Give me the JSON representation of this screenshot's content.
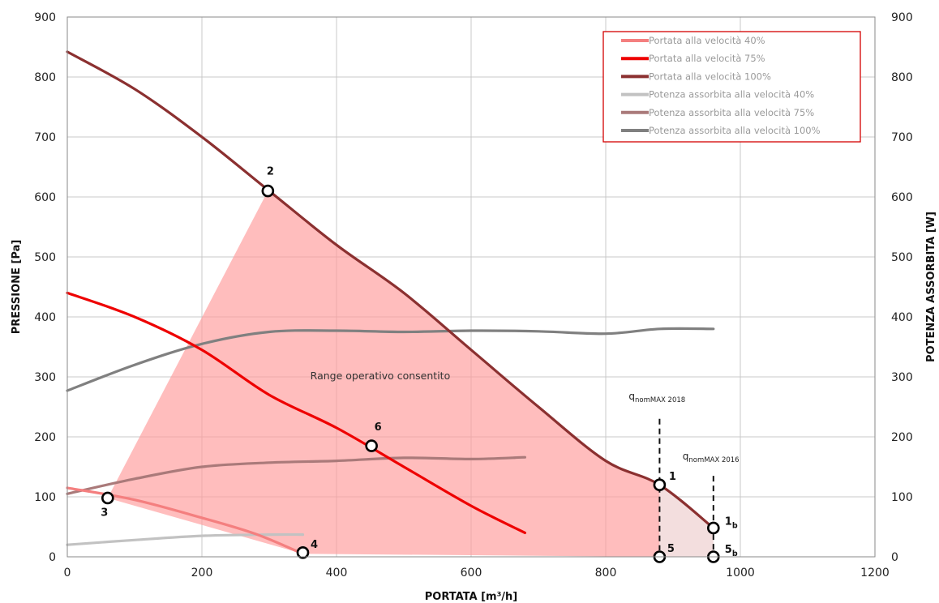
{
  "chart_data": {
    "type": "line",
    "xlabel": "PORTATA [m³/h]",
    "ylabel_left": "PRESSIONE [Pa]",
    "ylabel_right": "POTENZA ASSORBITA [W]",
    "xlim": [
      0,
      1200
    ],
    "ylim": [
      0,
      900
    ],
    "y2lim": [
      0,
      900
    ],
    "x_ticks": [
      "0",
      "200",
      "400",
      "600",
      "800",
      "1000",
      "1200"
    ],
    "y_ticks": [
      "0",
      "100",
      "200",
      "300",
      "400",
      "500",
      "600",
      "700",
      "800",
      "900"
    ],
    "y2_ticks": [
      "0",
      "100",
      "200",
      "300",
      "400",
      "500",
      "600",
      "700",
      "800",
      "900"
    ],
    "grid": true,
    "legend_position": "top-right",
    "series": [
      {
        "name": "Portata alla velocità 40%",
        "color": "#f47f7f",
        "axis": "left",
        "points": [
          [
            0,
            115
          ],
          [
            100,
            95
          ],
          [
            200,
            65
          ],
          [
            280,
            38
          ],
          [
            350,
            5
          ]
        ]
      },
      {
        "name": "Portata alla velocità 75%",
        "color": "#ee0000",
        "axis": "left",
        "points": [
          [
            0,
            440
          ],
          [
            100,
            400
          ],
          [
            200,
            345
          ],
          [
            300,
            270
          ],
          [
            400,
            215
          ],
          [
            500,
            150
          ],
          [
            600,
            85
          ],
          [
            680,
            40
          ]
        ]
      },
      {
        "name": "Portata alla velocità 100%",
        "color": "#8b3030",
        "axis": "left",
        "points": [
          [
            0,
            842
          ],
          [
            100,
            780
          ],
          [
            200,
            700
          ],
          [
            300,
            610
          ],
          [
            400,
            520
          ],
          [
            500,
            440
          ],
          [
            600,
            345
          ],
          [
            700,
            250
          ],
          [
            800,
            160
          ],
          [
            880,
            120
          ],
          [
            960,
            48
          ]
        ]
      },
      {
        "name": "Potenza assorbita alla velocità 40%",
        "color": "#c2c2c2",
        "axis": "right",
        "points": [
          [
            0,
            20
          ],
          [
            100,
            28
          ],
          [
            200,
            35
          ],
          [
            300,
            37
          ],
          [
            350,
            37
          ]
        ]
      },
      {
        "name": "Potenza assorbita alla velocità 75%",
        "color": "#aa7a7a",
        "axis": "right",
        "points": [
          [
            0,
            105
          ],
          [
            100,
            130
          ],
          [
            200,
            150
          ],
          [
            300,
            157
          ],
          [
            400,
            160
          ],
          [
            500,
            165
          ],
          [
            600,
            163
          ],
          [
            680,
            166
          ]
        ]
      },
      {
        "name": "Potenza assorbita alla velocità 100%",
        "color": "#808080",
        "axis": "right",
        "points": [
          [
            0,
            277
          ],
          [
            100,
            320
          ],
          [
            200,
            355
          ],
          [
            300,
            375
          ],
          [
            400,
            377
          ],
          [
            500,
            375
          ],
          [
            600,
            377
          ],
          [
            700,
            376
          ],
          [
            800,
            372
          ],
          [
            880,
            380
          ],
          [
            960,
            380
          ]
        ]
      }
    ],
    "operating_range": {
      "label": "Range operativo consentito",
      "polygon": [
        [
          60,
          98
        ],
        [
          298,
          610
        ],
        [
          400,
          520
        ],
        [
          500,
          440
        ],
        [
          600,
          345
        ],
        [
          700,
          250
        ],
        [
          800,
          160
        ],
        [
          880,
          120
        ],
        [
          880,
          0
        ],
        [
          350,
          5
        ]
      ],
      "extension_polygon": [
        [
          880,
          120
        ],
        [
          960,
          48
        ],
        [
          960,
          0
        ],
        [
          880,
          0
        ]
      ],
      "color": "#ff9a9a"
    },
    "points": [
      {
        "label": "2",
        "x": 298,
        "y": 610
      },
      {
        "label": "6",
        "x": 452,
        "y": 185
      },
      {
        "label": "3",
        "x": 60,
        "y": 98
      },
      {
        "label": "4",
        "x": 350,
        "y": 7
      },
      {
        "label": "1",
        "x": 880,
        "y": 120
      },
      {
        "label": "1b",
        "x": 960,
        "y": 48
      },
      {
        "label": "5",
        "x": 880,
        "y": 0
      },
      {
        "label": "5b",
        "x": 960,
        "y": 0
      }
    ],
    "annotations": [
      {
        "label": "q",
        "subscript": "nomMAX 2018",
        "x": 880
      },
      {
        "label": "q",
        "subscript": "nomMAX 2016",
        "x": 960
      }
    ]
  }
}
